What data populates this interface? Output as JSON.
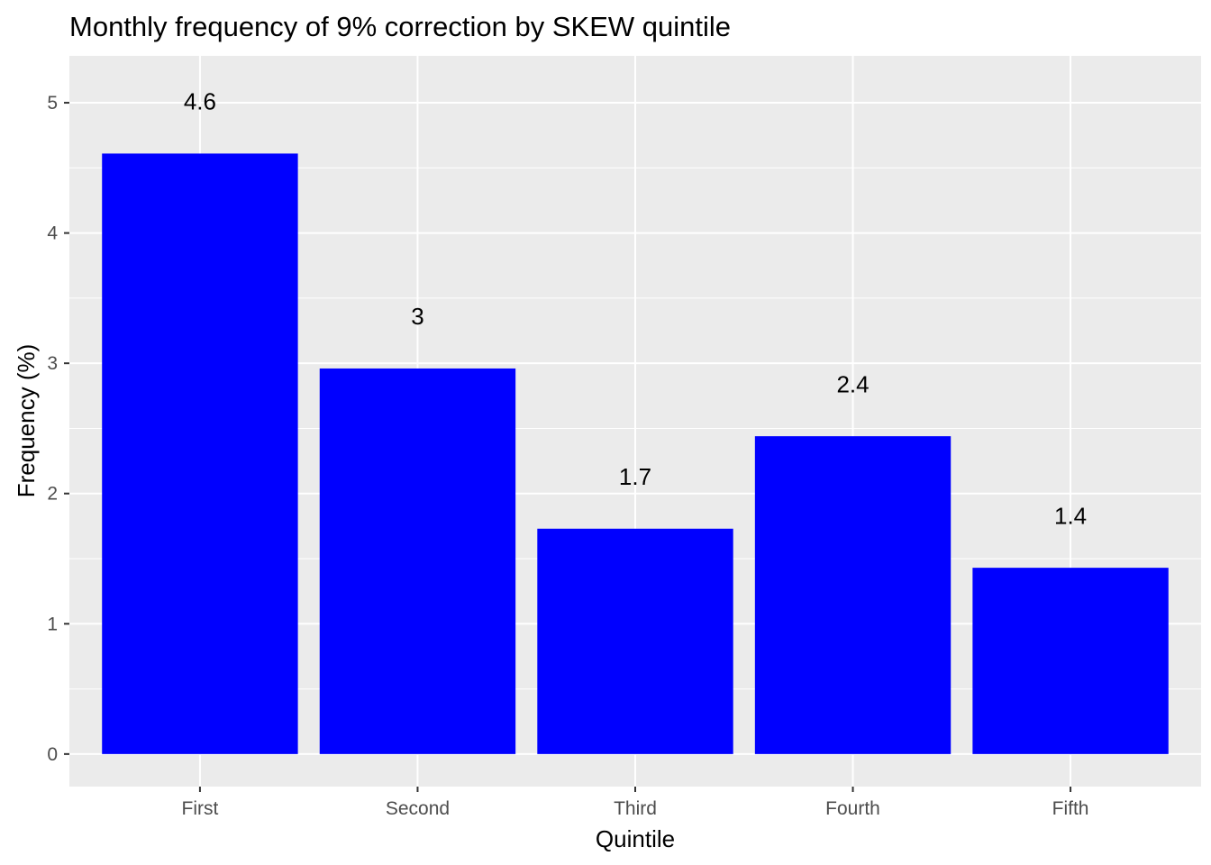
{
  "chart_data": {
    "type": "bar",
    "title": "Monthly frequency of 9% correction by SKEW quintile",
    "xlabel": "Quintile",
    "ylabel": "Frequency (%)",
    "categories": [
      "First",
      "Second",
      "Third",
      "Fourth",
      "Fifth"
    ],
    "values": [
      4.61,
      2.96,
      1.73,
      2.44,
      1.43
    ],
    "data_labels": [
      "4.6",
      "3",
      "1.7",
      "2.4",
      "1.4"
    ],
    "ylim": [
      -0.25,
      5.36
    ],
    "yticks": [
      0,
      1,
      2,
      3,
      4,
      5
    ],
    "ytick_labels": [
      "0",
      "1",
      "2",
      "3",
      "4",
      "5"
    ],
    "grid": true,
    "legend": "none",
    "colors": {
      "bar": "#0000ff",
      "panel_background": "#ebebeb",
      "grid": "#ffffff",
      "tick_text": "#4d4d4d",
      "text": "#000000"
    }
  }
}
